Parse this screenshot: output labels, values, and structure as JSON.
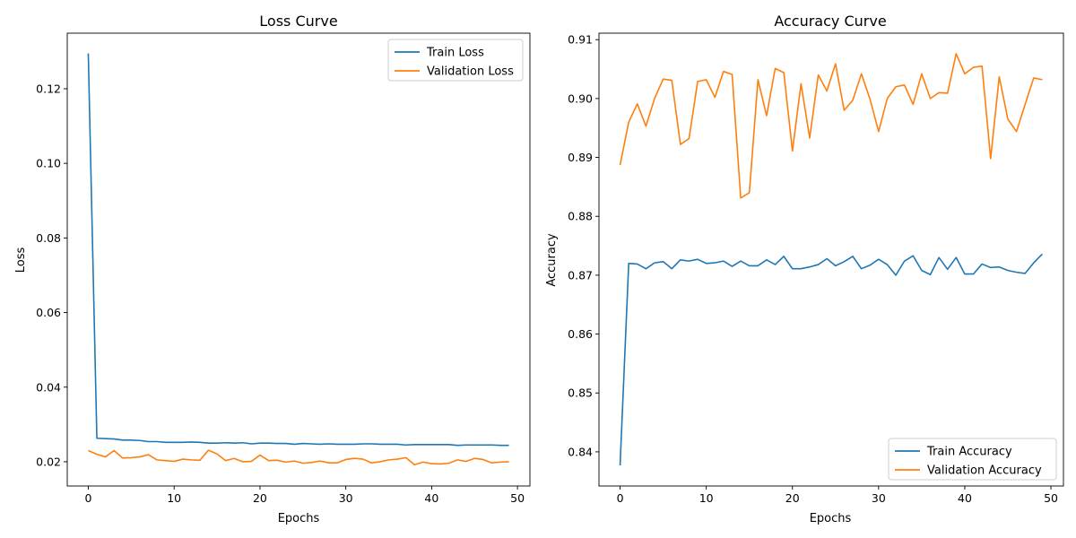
{
  "colors": {
    "train": "#1f77b4",
    "validation": "#ff7f0e"
  },
  "chart_data": [
    {
      "type": "line",
      "title": "Loss Curve",
      "xlabel": "Epochs",
      "ylabel": "Loss",
      "xlim": [
        -2.45,
        51.45
      ],
      "ylim": [
        0.0135,
        0.1349
      ],
      "xticks": [
        "0",
        "10",
        "20",
        "30",
        "40",
        "50"
      ],
      "yticks": [
        "0.02",
        "0.04",
        "0.06",
        "0.08",
        "0.10",
        "0.12"
      ],
      "legend_position": "top-right",
      "grid": false,
      "x": [
        0,
        1,
        2,
        3,
        4,
        5,
        6,
        7,
        8,
        9,
        10,
        11,
        12,
        13,
        14,
        15,
        16,
        17,
        18,
        19,
        20,
        21,
        22,
        23,
        24,
        25,
        26,
        27,
        28,
        29,
        30,
        31,
        32,
        33,
        34,
        35,
        36,
        37,
        38,
        39,
        40,
        41,
        42,
        43,
        44,
        45,
        46,
        47,
        48,
        49
      ],
      "series": [
        {
          "name": "Train Loss",
          "values": [
            0.1295,
            0.0263,
            0.0262,
            0.0261,
            0.0258,
            0.0258,
            0.0257,
            0.0254,
            0.0254,
            0.0252,
            0.0252,
            0.0252,
            0.0253,
            0.0252,
            0.025,
            0.025,
            0.0251,
            0.025,
            0.0251,
            0.0248,
            0.025,
            0.025,
            0.0249,
            0.0249,
            0.0247,
            0.0249,
            0.0248,
            0.0247,
            0.0248,
            0.0247,
            0.0247,
            0.0247,
            0.0248,
            0.0248,
            0.0247,
            0.0247,
            0.0247,
            0.0245,
            0.0246,
            0.0246,
            0.0246,
            0.0246,
            0.0246,
            0.0244,
            0.0245,
            0.0245,
            0.0245,
            0.0245,
            0.0244,
            0.0244
          ]
        },
        {
          "name": "Validation Loss",
          "values": [
            0.023,
            0.022,
            0.0213,
            0.023,
            0.021,
            0.0211,
            0.0213,
            0.0219,
            0.0205,
            0.0203,
            0.0201,
            0.0207,
            0.0205,
            0.0204,
            0.0231,
            0.0221,
            0.0203,
            0.0209,
            0.02,
            0.0201,
            0.0218,
            0.0203,
            0.0204,
            0.0199,
            0.0202,
            0.0196,
            0.0198,
            0.0202,
            0.0197,
            0.0197,
            0.0206,
            0.0209,
            0.0207,
            0.0197,
            0.02,
            0.0205,
            0.0207,
            0.0211,
            0.0192,
            0.0199,
            0.0195,
            0.0194,
            0.0196,
            0.0205,
            0.0201,
            0.0209,
            0.0206,
            0.0197,
            0.0199,
            0.02
          ]
        }
      ]
    },
    {
      "type": "line",
      "title": "Accuracy Curve",
      "xlabel": "Epochs",
      "ylabel": "Accuracy",
      "xlim": [
        -2.45,
        51.45
      ],
      "ylim": [
        0.8342,
        0.9111
      ],
      "xticks": [
        "0",
        "10",
        "20",
        "30",
        "40",
        "50"
      ],
      "yticks": [
        "0.84",
        "0.85",
        "0.86",
        "0.87",
        "0.88",
        "0.89",
        "0.90",
        "0.91"
      ],
      "legend_position": "lower-right",
      "grid": false,
      "x": [
        0,
        1,
        2,
        3,
        4,
        5,
        6,
        7,
        8,
        9,
        10,
        11,
        12,
        13,
        14,
        15,
        16,
        17,
        18,
        19,
        20,
        21,
        22,
        23,
        24,
        25,
        26,
        27,
        28,
        29,
        30,
        31,
        32,
        33,
        34,
        35,
        36,
        37,
        38,
        39,
        40,
        41,
        42,
        43,
        44,
        45,
        46,
        47,
        48,
        49
      ],
      "series": [
        {
          "name": "Train Accuracy",
          "values": [
            0.8377,
            0.872,
            0.8719,
            0.8711,
            0.8721,
            0.8723,
            0.8711,
            0.8726,
            0.8724,
            0.8727,
            0.872,
            0.8721,
            0.8724,
            0.8715,
            0.8724,
            0.8716,
            0.8716,
            0.8726,
            0.8718,
            0.8732,
            0.8711,
            0.8711,
            0.8714,
            0.8718,
            0.8728,
            0.8716,
            0.8723,
            0.8732,
            0.8711,
            0.8717,
            0.8727,
            0.8718,
            0.87,
            0.8724,
            0.8733,
            0.8708,
            0.8701,
            0.873,
            0.871,
            0.873,
            0.8702,
            0.8702,
            0.8719,
            0.8713,
            0.8714,
            0.8708,
            0.8705,
            0.8703,
            0.8721,
            0.8736
          ]
        },
        {
          "name": "Validation Accuracy",
          "values": [
            0.8887,
            0.896,
            0.8991,
            0.8953,
            0.9,
            0.9033,
            0.9031,
            0.8922,
            0.8932,
            0.9029,
            0.9032,
            0.9002,
            0.9046,
            0.9041,
            0.8831,
            0.884,
            0.9032,
            0.8971,
            0.9051,
            0.9044,
            0.8911,
            0.9025,
            0.8933,
            0.904,
            0.9013,
            0.9059,
            0.898,
            0.8997,
            0.9042,
            0.8999,
            0.8944,
            0.9,
            0.902,
            0.9023,
            0.899,
            0.9042,
            0.9,
            0.901,
            0.9009,
            0.9076,
            0.9042,
            0.9053,
            0.9055,
            0.8898,
            0.9037,
            0.8965,
            0.8944,
            0.899,
            0.9035,
            0.9032
          ]
        }
      ]
    }
  ]
}
